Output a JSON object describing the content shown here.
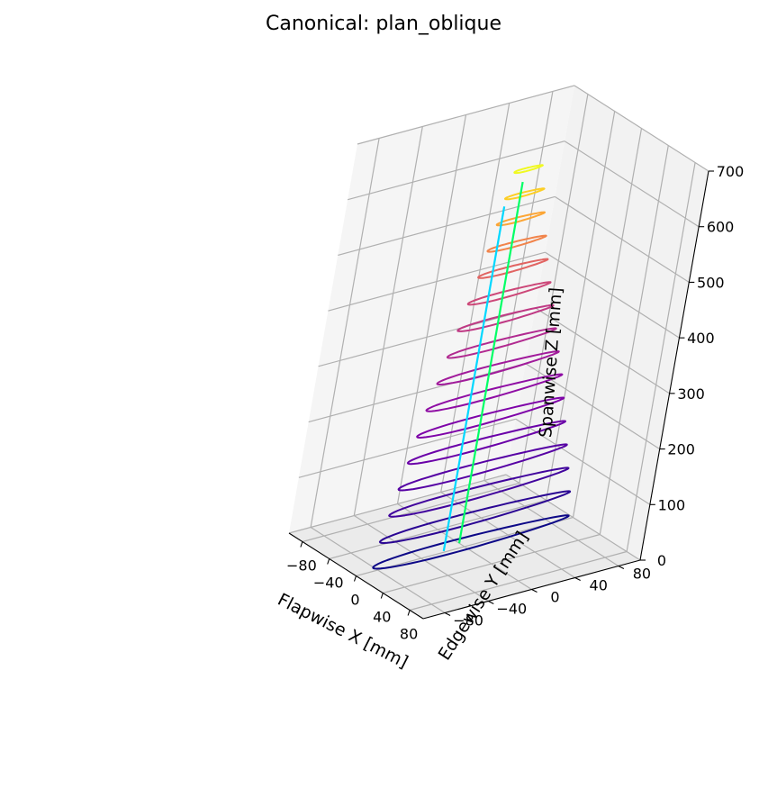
{
  "chart_data": {
    "type": "line3d",
    "title": "Canonical: plan_oblique",
    "xlabel": "Flapwise X [mm]",
    "ylabel": "Edgewise Y [mm]",
    "zlabel": "Spanwise Z [mm]",
    "xlim": [
      -100,
      100
    ],
    "ylim": [
      -100,
      100
    ],
    "zlim": [
      0,
      700
    ],
    "x_ticks": [
      "−80",
      "−40",
      "0",
      "40",
      "80"
    ],
    "y_ticks": [
      "−80",
      "−40",
      "0",
      "40",
      "80"
    ],
    "z_ticks": [
      "0",
      "100",
      "200",
      "300",
      "400",
      "500",
      "600",
      "700"
    ],
    "grid": true,
    "colormap": "plasma",
    "sections": [
      {
        "z": 0,
        "x_center": -5,
        "chord": 180,
        "thickness": 20,
        "color": "#0d0887"
      },
      {
        "z": 45,
        "x_center": -5,
        "chord": 175,
        "thickness": 19,
        "color": "#2a0593"
      },
      {
        "z": 90,
        "x_center": -5,
        "chord": 165,
        "thickness": 18,
        "color": "#41049d"
      },
      {
        "z": 135,
        "x_center": -5,
        "chord": 155,
        "thickness": 17,
        "color": "#5601a4"
      },
      {
        "z": 180,
        "x_center": -5,
        "chord": 145,
        "thickness": 16,
        "color": "#6a00a8"
      },
      {
        "z": 225,
        "x_center": -5,
        "chord": 135,
        "thickness": 15,
        "color": "#7e03a8"
      },
      {
        "z": 270,
        "x_center": -5,
        "chord": 125,
        "thickness": 14,
        "color": "#8f0da4"
      },
      {
        "z": 315,
        "x_center": -5,
        "chord": 112,
        "thickness": 13,
        "color": "#a11b9b"
      },
      {
        "z": 360,
        "x_center": -5,
        "chord": 100,
        "thickness": 12,
        "color": "#b12a90"
      },
      {
        "z": 405,
        "x_center": -5,
        "chord": 88,
        "thickness": 11,
        "color": "#bf3984"
      },
      {
        "z": 450,
        "x_center": -5,
        "chord": 76,
        "thickness": 10,
        "color": "#cc4778"
      },
      {
        "z": 495,
        "x_center": -5,
        "chord": 64,
        "thickness": 9,
        "color": "#e16462"
      },
      {
        "z": 540,
        "x_center": -5,
        "chord": 54,
        "thickness": 8,
        "color": "#f1844b"
      },
      {
        "z": 585,
        "x_center": -5,
        "chord": 44,
        "thickness": 7,
        "color": "#fca636"
      },
      {
        "z": 630,
        "x_center": -5,
        "chord": 36,
        "thickness": 6,
        "color": "#fcce25"
      },
      {
        "z": 675,
        "x_center": -5,
        "chord": 26,
        "thickness": 5,
        "color": "#f0f921"
      }
    ],
    "spars": [
      {
        "name": "",
        "x": -8,
        "y": 0,
        "z_range": [
          0,
          650
        ],
        "color": "#00ff66"
      },
      {
        "name": "",
        "x": -2,
        "y": -18,
        "z_range": [
          0,
          620
        ],
        "color": "#00d8ff"
      }
    ]
  }
}
